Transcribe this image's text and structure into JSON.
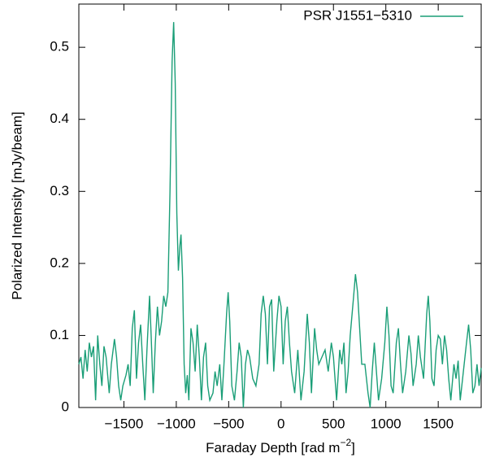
{
  "chart_data": {
    "type": "line",
    "xlabel": {
      "text": "Faraday Depth [rad m",
      "superscript": "−2",
      "suffix": "]"
    },
    "ylabel": "Polarized Intensity [mJy/beam]",
    "xlim": [
      -1930,
      1910
    ],
    "ylim": [
      0,
      0.56
    ],
    "xticks": [
      {
        "value": -1500,
        "label": "−1500"
      },
      {
        "value": -1000,
        "label": "−1000"
      },
      {
        "value": -500,
        "label": "−500"
      },
      0,
      500,
      1000,
      1500
    ],
    "yticks": [
      0,
      0.1,
      0.2,
      0.3,
      0.4,
      0.5
    ],
    "legend": "top-right",
    "series": [
      {
        "name": "PSR J1551−5310",
        "color": "#1a9e77",
        "x": [
          -1930,
          -1910,
          -1890,
          -1870,
          -1850,
          -1830,
          -1810,
          -1790,
          -1770,
          -1750,
          -1730,
          -1710,
          -1690,
          -1670,
          -1640,
          -1620,
          -1590,
          -1570,
          -1550,
          -1530,
          -1510,
          -1480,
          -1460,
          -1440,
          -1420,
          -1400,
          -1380,
          -1360,
          -1340,
          -1320,
          -1300,
          -1280,
          -1255,
          -1240,
          -1220,
          -1200,
          -1180,
          -1160,
          -1140,
          -1120,
          -1100,
          -1080,
          -1060,
          -1040,
          -1025,
          -1010,
          -995,
          -980,
          -965,
          -955,
          -940,
          -925,
          -910,
          -895,
          -880,
          -860,
          -840,
          -820,
          -800,
          -780,
          -760,
          -740,
          -720,
          -700,
          -680,
          -650,
          -630,
          -610,
          -585,
          -565,
          -545,
          -520,
          -505,
          -490,
          -470,
          -445,
          -420,
          -400,
          -380,
          -360,
          -340,
          -320,
          -300,
          -270,
          -240,
          -210,
          -190,
          -170,
          -150,
          -130,
          -110,
          -90,
          -70,
          -40,
          -20,
          0,
          20,
          40,
          60,
          80,
          100,
          130,
          160,
          190,
          220,
          250,
          270,
          290,
          320,
          340,
          360,
          390,
          420,
          450,
          480,
          500,
          530,
          560,
          580,
          600,
          620,
          640,
          660,
          690,
          710,
          730,
          750,
          770,
          800,
          830,
          850,
          870,
          890,
          910,
          930,
          960,
          990,
          1010,
          1030,
          1050,
          1070,
          1100,
          1120,
          1140,
          1160,
          1190,
          1220,
          1240,
          1260,
          1290,
          1310,
          1330,
          1360,
          1390,
          1405,
          1420,
          1440,
          1460,
          1480,
          1500,
          1520,
          1540,
          1560,
          1580,
          1600,
          1620,
          1650,
          1670,
          1690,
          1710,
          1740,
          1770,
          1790,
          1810,
          1830,
          1850,
          1870,
          1890,
          1910
        ],
        "values": [
          0.06,
          0.07,
          0.04,
          0.08,
          0.05,
          0.09,
          0.07,
          0.085,
          0.01,
          0.1,
          0.06,
          0.03,
          0.085,
          0.07,
          0.02,
          0.06,
          0.095,
          0.07,
          0.03,
          0.01,
          0.03,
          0.045,
          0.06,
          0.03,
          0.11,
          0.135,
          0.04,
          0.09,
          0.115,
          0.06,
          0.01,
          0.08,
          0.155,
          0.1,
          0.02,
          0.09,
          0.14,
          0.1,
          0.12,
          0.155,
          0.14,
          0.16,
          0.3,
          0.48,
          0.535,
          0.45,
          0.27,
          0.19,
          0.225,
          0.24,
          0.18,
          0.06,
          0.02,
          0.045,
          0.01,
          0.11,
          0.09,
          0.05,
          0.115,
          0.07,
          0.01,
          0.07,
          0.09,
          0.03,
          0.01,
          0.02,
          0.05,
          0.03,
          0.06,
          0.01,
          0.06,
          0.13,
          0.16,
          0.12,
          0.03,
          0.01,
          0.05,
          0.09,
          0.07,
          0.0,
          0.06,
          0.08,
          0.07,
          0.04,
          0.03,
          0.06,
          0.13,
          0.155,
          0.13,
          0.06,
          0.14,
          0.15,
          0.05,
          0.12,
          0.155,
          0.14,
          0.06,
          0.12,
          0.14,
          0.09,
          0.05,
          0.02,
          0.08,
          0.01,
          0.05,
          0.13,
          0.09,
          0.02,
          0.11,
          0.08,
          0.06,
          0.07,
          0.08,
          0.05,
          0.09,
          0.07,
          0.01,
          0.08,
          0.06,
          0.09,
          0.02,
          0.05,
          0.1,
          0.15,
          0.185,
          0.16,
          0.11,
          0.06,
          0.06,
          0.02,
          0.0,
          0.05,
          0.09,
          0.05,
          0.01,
          0.04,
          0.09,
          0.14,
          0.1,
          0.03,
          0.02,
          0.09,
          0.11,
          0.06,
          0.02,
          0.05,
          0.1,
          0.075,
          0.03,
          0.06,
          0.1,
          0.07,
          0.04,
          0.13,
          0.155,
          0.12,
          0.04,
          0.03,
          0.08,
          0.1,
          0.095,
          0.06,
          0.1,
          0.08,
          0.04,
          0.01,
          0.06,
          0.04,
          0.065,
          0.01,
          0.05,
          0.09,
          0.115,
          0.08,
          0.02,
          0.03,
          0.06,
          0.03,
          0.055
        ]
      }
    ]
  }
}
